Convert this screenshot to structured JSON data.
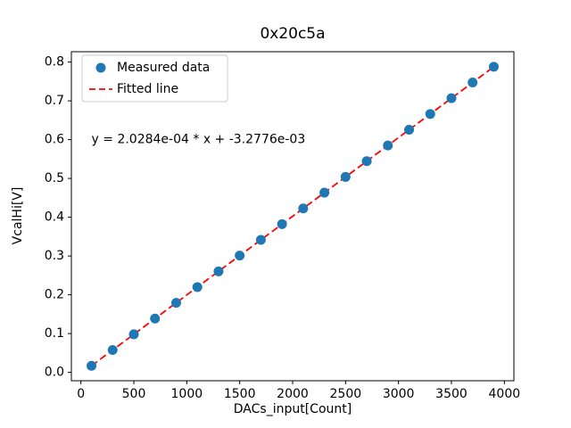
{
  "figure": {
    "title": "0x20c5a",
    "xlabel": "DACs_input[Count]",
    "ylabel": "VcalHi[V]"
  },
  "chart_data": {
    "type": "scatter",
    "title": "0x20c5a",
    "xlabel": "DACs_input[Count]",
    "ylabel": "VcalHi[V]",
    "xlim": [
      -90,
      4090
    ],
    "ylim": [
      -0.0216,
      0.8266
    ],
    "grid": false,
    "xticks": {
      "values": [
        0,
        500,
        1000,
        1500,
        2000,
        2500,
        3000,
        3500,
        4000
      ],
      "labels": [
        "0",
        "500",
        "1000",
        "1500",
        "2000",
        "2500",
        "3000",
        "3500",
        "4000"
      ]
    },
    "yticks": {
      "values": [
        0.0,
        0.1,
        0.2,
        0.3,
        0.4,
        0.5,
        0.6,
        0.7,
        0.8
      ],
      "labels": [
        "0.0",
        "0.1",
        "0.2",
        "0.3",
        "0.4",
        "0.5",
        "0.6",
        "0.7",
        "0.8"
      ]
    },
    "legend": {
      "position": "upper left",
      "entries": [
        {
          "label": "Measured data",
          "type": "marker",
          "color": "#1f77b4"
        },
        {
          "label": "Fitted line",
          "type": "dashed-line",
          "color": "#ff0000"
        }
      ]
    },
    "series": [
      {
        "name": "Measured data",
        "type": "scatter",
        "color": "#1f77b4",
        "marker_radius": 5.5,
        "x": [
          100,
          300,
          500,
          700,
          900,
          1100,
          1300,
          1500,
          1700,
          1900,
          2100,
          2300,
          2500,
          2700,
          2900,
          3100,
          3300,
          3500,
          3700,
          3900
        ],
        "y": [
          0.017,
          0.0576,
          0.0981,
          0.1387,
          0.1793,
          0.2199,
          0.2604,
          0.301,
          0.3416,
          0.3821,
          0.4227,
          0.4633,
          0.5038,
          0.5444,
          0.585,
          0.6255,
          0.6661,
          0.7067,
          0.7472,
          0.7878
        ]
      },
      {
        "name": "Fitted line",
        "type": "line",
        "style": "dashed",
        "color": "#ff0000",
        "fit": {
          "slope": 0.00020284,
          "intercept": -0.0032776,
          "x_range": [
            100,
            3900
          ]
        }
      }
    ],
    "annotation": {
      "text": "y = 2.0284e-04 * x + -3.2776e-03",
      "x": 100,
      "y": 0.6
    }
  }
}
